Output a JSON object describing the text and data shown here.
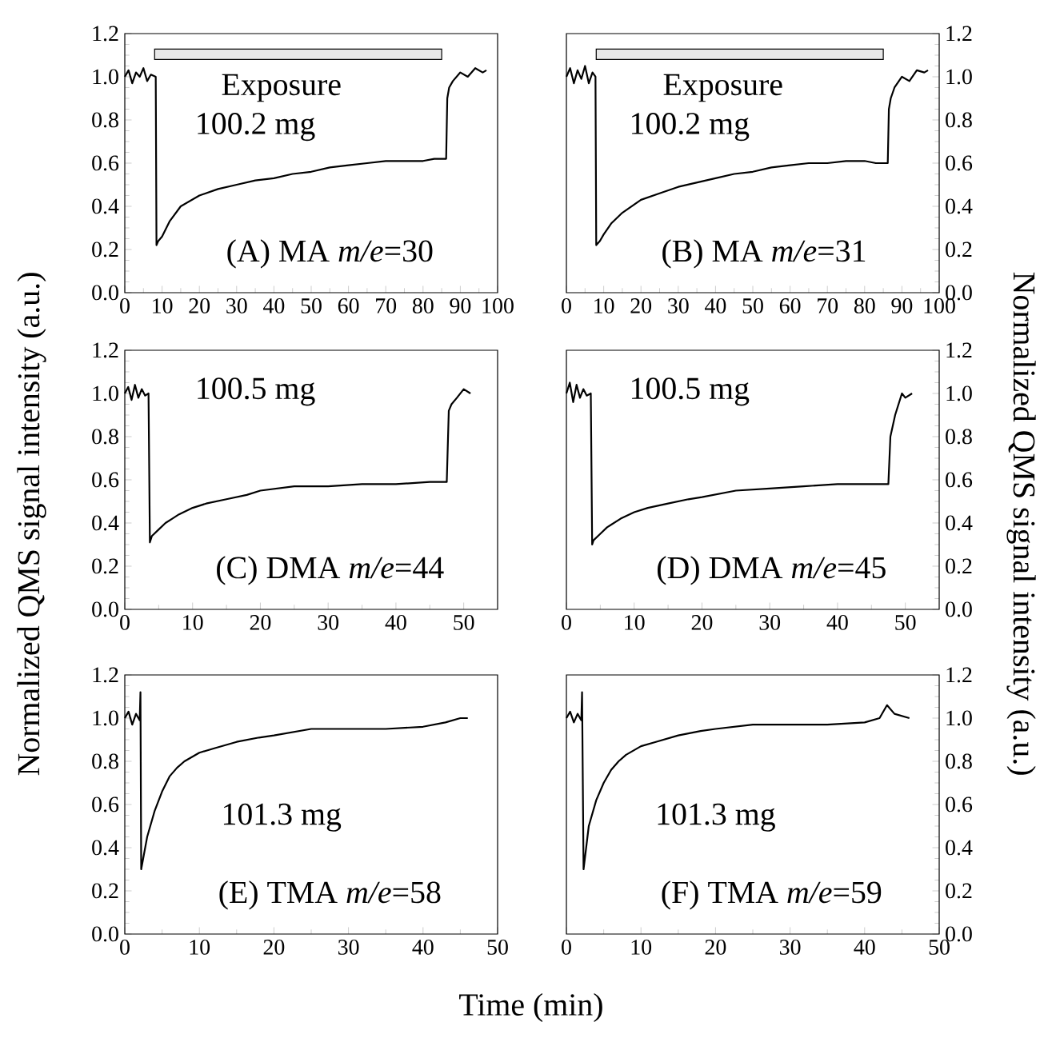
{
  "chart_data": [
    {
      "type": "line",
      "x": [
        0,
        1,
        2,
        3,
        4,
        5,
        6,
        7,
        8.3,
        8.5,
        9,
        10,
        12,
        15,
        20,
        25,
        30,
        35,
        40,
        45,
        50,
        55,
        60,
        65,
        70,
        75,
        80,
        83,
        86.2,
        86.5,
        87,
        88,
        90,
        92,
        94,
        96,
        97
      ],
      "series": [
        {
          "color": "#000000",
          "values": [
            1.0,
            1.03,
            0.97,
            1.02,
            1.0,
            1.04,
            0.98,
            1.01,
            1.0,
            0.22,
            0.24,
            0.26,
            0.33,
            0.4,
            0.45,
            0.48,
            0.5,
            0.52,
            0.53,
            0.55,
            0.56,
            0.58,
            0.59,
            0.6,
            0.61,
            0.61,
            0.61,
            0.62,
            0.62,
            0.9,
            0.95,
            0.98,
            1.02,
            1.0,
            1.04,
            1.02,
            1.03
          ]
        }
      ],
      "xlim": [
        0,
        100
      ],
      "xticks": [
        0,
        10,
        20,
        30,
        40,
        50,
        60,
        70,
        80,
        90,
        100
      ],
      "ylim": [
        0,
        1.2
      ],
      "yticks": [
        {
          "value": 0,
          "label": "0.0"
        },
        {
          "value": 0.2,
          "label": "0.2"
        },
        {
          "value": 0.4,
          "label": "0.4"
        },
        {
          "value": 0.6,
          "label": "0.6"
        },
        {
          "value": 0.8,
          "label": "0.8"
        },
        {
          "value": 1.0,
          "label": "1.0"
        },
        {
          "value": 1.2,
          "label": "1.2"
        }
      ],
      "bands": [
        {
          "axis": "x",
          "from": 8,
          "to": 85,
          "label": "Exposure",
          "color": "#e8e8e8"
        }
      ],
      "annotations": [
        "100.2 mg",
        "(A) MA *m/e*=30"
      ]
    },
    {
      "type": "line",
      "x": [
        0,
        1,
        2,
        3,
        4,
        5,
        6,
        7,
        7.8,
        8,
        9,
        10,
        12,
        15,
        20,
        25,
        30,
        35,
        40,
        45,
        50,
        55,
        60,
        65,
        70,
        75,
        80,
        83,
        86.2,
        86.5,
        87,
        88,
        90,
        92,
        94,
        96,
        97
      ],
      "series": [
        {
          "color": "#000000",
          "axis": "y2",
          "values": [
            1.0,
            1.04,
            0.97,
            1.03,
            0.99,
            1.05,
            0.97,
            1.02,
            1.0,
            0.22,
            0.24,
            0.27,
            0.32,
            0.37,
            0.43,
            0.46,
            0.49,
            0.51,
            0.53,
            0.55,
            0.56,
            0.58,
            0.59,
            0.6,
            0.6,
            0.61,
            0.61,
            0.6,
            0.6,
            0.85,
            0.9,
            0.95,
            1.0,
            0.98,
            1.03,
            1.02,
            1.03
          ]
        }
      ],
      "xlim": [
        0,
        100
      ],
      "xticks": [
        0,
        10,
        20,
        30,
        40,
        50,
        60,
        70,
        80,
        90,
        100
      ],
      "y2lim": [
        0,
        1.2
      ],
      "y2ticks": [
        {
          "value": 0,
          "label": "0.0"
        },
        {
          "value": 0.2,
          "label": "0.2"
        },
        {
          "value": 0.4,
          "label": "0.4"
        },
        {
          "value": 0.6,
          "label": "0.6"
        },
        {
          "value": 0.8,
          "label": "0.8"
        },
        {
          "value": 1.0,
          "label": "1.0"
        },
        {
          "value": 1.2,
          "label": "1.2"
        }
      ],
      "bands": [
        {
          "axis": "x",
          "from": 8,
          "to": 85,
          "label": "Exposure",
          "color": "#e8e8e8"
        }
      ],
      "annotations": [
        "100.2 mg",
        "(B) MA *m/e*=31"
      ]
    },
    {
      "type": "line",
      "x": [
        0,
        0.5,
        1,
        1.5,
        2,
        2.5,
        3,
        3.5,
        3.7,
        4,
        5,
        6,
        7,
        8,
        10,
        12,
        15,
        18,
        20,
        25,
        30,
        35,
        40,
        45,
        47.5,
        47.8,
        48.2,
        49,
        50,
        51
      ],
      "series": [
        {
          "color": "#000000",
          "values": [
            1.0,
            1.03,
            0.97,
            1.04,
            0.98,
            1.02,
            0.99,
            1.0,
            0.31,
            0.34,
            0.37,
            0.4,
            0.42,
            0.44,
            0.47,
            0.49,
            0.51,
            0.53,
            0.55,
            0.57,
            0.57,
            0.58,
            0.58,
            0.59,
            0.59,
            0.92,
            0.95,
            0.98,
            1.02,
            1.0
          ]
        }
      ],
      "xlim": [
        0,
        55
      ],
      "xticks": [
        0,
        10,
        20,
        30,
        40,
        50
      ],
      "ylim": [
        0,
        1.2
      ],
      "yticks": [
        {
          "value": 0,
          "label": "0.0"
        },
        {
          "value": 0.2,
          "label": "0.2"
        },
        {
          "value": 0.4,
          "label": "0.4"
        },
        {
          "value": 0.6,
          "label": "0.6"
        },
        {
          "value": 0.8,
          "label": "0.8"
        },
        {
          "value": 1.0,
          "label": "1.0"
        },
        {
          "value": 1.2,
          "label": "1.2"
        }
      ],
      "ylabel": "Normalized QMS signal intensity (a.u.)",
      "annotations": [
        "100.5 mg",
        "(C) DMA *m/e*=44"
      ]
    },
    {
      "type": "line",
      "x": [
        0,
        0.5,
        1,
        1.5,
        2,
        2.5,
        3,
        3.6,
        3.8,
        4,
        5,
        6,
        8,
        10,
        12,
        15,
        18,
        20,
        25,
        30,
        35,
        40,
        45,
        47.5,
        47.8,
        48.5,
        49.5,
        50,
        51
      ],
      "series": [
        {
          "color": "#000000",
          "axis": "y2",
          "values": [
            1.0,
            1.05,
            0.96,
            1.04,
            0.98,
            1.02,
            0.99,
            1.0,
            0.3,
            0.32,
            0.35,
            0.38,
            0.42,
            0.45,
            0.47,
            0.49,
            0.51,
            0.52,
            0.55,
            0.56,
            0.57,
            0.58,
            0.58,
            0.58,
            0.8,
            0.9,
            1.0,
            0.98,
            1.0
          ]
        }
      ],
      "xlim": [
        0,
        55
      ],
      "xticks": [
        0,
        10,
        20,
        30,
        40,
        50
      ],
      "y2lim": [
        0,
        1.2
      ],
      "y2ticks": [
        {
          "value": 0,
          "label": "0.0"
        },
        {
          "value": 0.2,
          "label": "0.2"
        },
        {
          "value": 0.4,
          "label": "0.4"
        },
        {
          "value": 0.6,
          "label": "0.6"
        },
        {
          "value": 0.8,
          "label": "0.8"
        },
        {
          "value": 1.0,
          "label": "1.0"
        },
        {
          "value": 1.2,
          "label": "1.2"
        }
      ],
      "y2label": "Normalized QMS signal intensity (a.u.)",
      "annotations": [
        "100.5 mg",
        "(D) DMA *m/e*=45"
      ]
    },
    {
      "type": "line",
      "x": [
        0,
        0.5,
        1,
        1.5,
        2,
        2.1,
        2.2,
        3,
        4,
        5,
        6,
        7,
        8,
        10,
        12,
        15,
        18,
        20,
        25,
        30,
        35,
        40,
        43,
        45,
        46
      ],
      "series": [
        {
          "color": "#000000",
          "values": [
            1.0,
            1.03,
            0.97,
            1.02,
            0.99,
            1.12,
            0.3,
            0.45,
            0.57,
            0.66,
            0.73,
            0.77,
            0.8,
            0.84,
            0.86,
            0.89,
            0.91,
            0.92,
            0.95,
            0.95,
            0.95,
            0.96,
            0.98,
            1.0,
            1.0
          ]
        }
      ],
      "xlim": [
        0,
        50
      ],
      "xticks": [
        0,
        10,
        20,
        30,
        40,
        50
      ],
      "ylim": [
        0,
        1.2
      ],
      "yticks": [
        {
          "value": 0,
          "label": "0.0"
        },
        {
          "value": 0.2,
          "label": "0.2"
        },
        {
          "value": 0.4,
          "label": "0.4"
        },
        {
          "value": 0.6,
          "label": "0.6"
        },
        {
          "value": 0.8,
          "label": "0.8"
        },
        {
          "value": 1.0,
          "label": "1.0"
        },
        {
          "value": 1.2,
          "label": "1.2"
        }
      ],
      "xlabel": "Time (min)",
      "annotations": [
        "101.3 mg",
        "(E) TMA *m/e*=58"
      ]
    },
    {
      "type": "line",
      "x": [
        0,
        0.5,
        1,
        1.5,
        2,
        2.1,
        2.3,
        3,
        4,
        5,
        6,
        7,
        8,
        10,
        12,
        15,
        18,
        20,
        25,
        30,
        35,
        40,
        42,
        43,
        44,
        46
      ],
      "series": [
        {
          "color": "#000000",
          "axis": "y2",
          "values": [
            1.0,
            1.03,
            0.98,
            1.02,
            0.99,
            1.12,
            0.3,
            0.5,
            0.62,
            0.7,
            0.76,
            0.8,
            0.83,
            0.87,
            0.89,
            0.92,
            0.94,
            0.95,
            0.97,
            0.97,
            0.97,
            0.98,
            1.0,
            1.06,
            1.02,
            1.0
          ]
        }
      ],
      "xlim": [
        0,
        50
      ],
      "xticks": [
        0,
        10,
        20,
        30,
        40,
        50
      ],
      "y2lim": [
        0,
        1.2
      ],
      "y2ticks": [
        {
          "value": 0,
          "label": "0.0"
        },
        {
          "value": 0.2,
          "label": "0.2"
        },
        {
          "value": 0.4,
          "label": "0.4"
        },
        {
          "value": 0.6,
          "label": "0.6"
        },
        {
          "value": 0.8,
          "label": "0.8"
        },
        {
          "value": 1.0,
          "label": "1.0"
        },
        {
          "value": 1.2,
          "label": "1.2"
        }
      ],
      "annotations": [
        "101.3 mg",
        "(F) TMA *m/e*=59"
      ]
    }
  ]
}
